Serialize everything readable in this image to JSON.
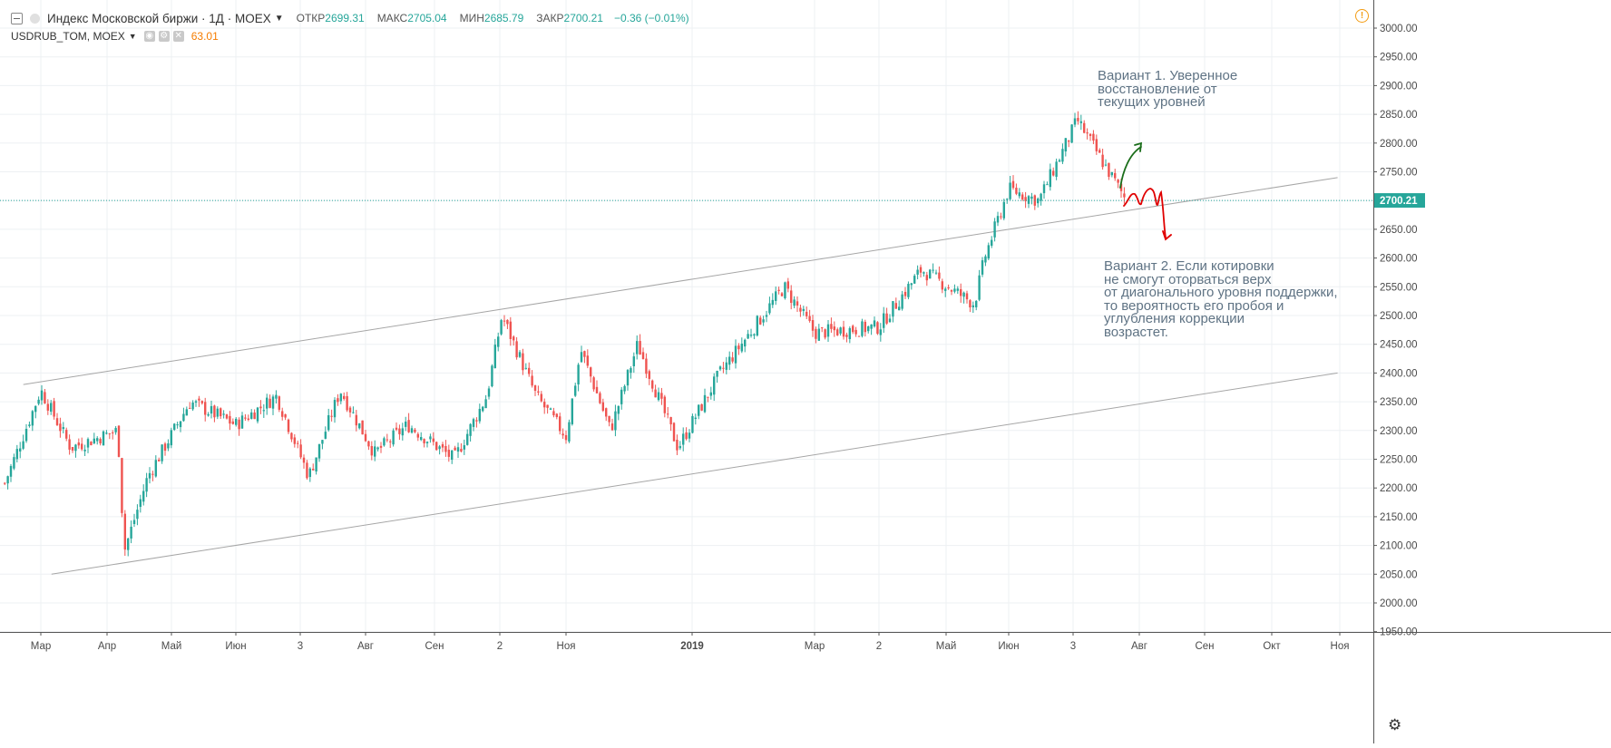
{
  "header": {
    "symbol_title": "Индекс Московской биржи · 1Д · MOEX",
    "open_label": "ОТКР",
    "open_value": "2699.31",
    "high_label": "МАКС",
    "high_value": "2705.04",
    "low_label": "МИН",
    "low_value": "2685.79",
    "close_label": "ЗАКР",
    "close_value": "2700.21",
    "change": "−0.36 (−0.01%)"
  },
  "compare": {
    "symbol": "USDRUB_TOM, MOEX",
    "value": "63.01"
  },
  "colors": {
    "up": "#26a69a",
    "down": "#ef5350",
    "price_line": "#26a69a",
    "arrow_up": "#1b6e1b",
    "arrow_down": "#e00000"
  },
  "annotations": {
    "variant1": "Вариант 1. Уверенное\nвосстановление от\nтекущих уровней",
    "variant2": "Вариант 2. Если котировки\nне смогут оторваться верх\nот диагонального уровня поддержки,\nто вероятность его пробоя и\nуглубления коррекции\nвозрастет."
  },
  "chart_data": {
    "type": "candlestick",
    "symbol": "Индекс Московской биржи",
    "timeframe": "1Д",
    "y_axis_ticks": [
      3000,
      2950,
      2900,
      2850,
      2800,
      2750,
      2700,
      2650,
      2600,
      2550,
      2500,
      2450,
      2400,
      2350,
      2300,
      2250,
      2200,
      2150,
      2100,
      2050,
      2000,
      1950
    ],
    "y_tick_labels": [
      "3000.00",
      "2950.00",
      "2900.00",
      "2850.00",
      "2800.00",
      "2750.00",
      "2700.00",
      "2650.00",
      "2600.00",
      "2550.00",
      "2500.00",
      "2450.00",
      "2400.00",
      "2350.00",
      "2300.00",
      "2250.00",
      "2200.00",
      "2150.00",
      "2100.00",
      "2050.00",
      "2000.00",
      "1950.00"
    ],
    "ylim": [
      1946,
      3030
    ],
    "x_tick_labels": [
      "Мар",
      "Апр",
      "Май",
      "Июн",
      "3",
      "Авг",
      "Сен",
      "2",
      "Ноя",
      "2019",
      "Мар",
      "2",
      "Май",
      "Июн",
      "3",
      "Авг",
      "Сен",
      "Окт",
      "Ноя"
    ],
    "last_price_label": "2700.21",
    "last_price": 2700.21,
    "approx_close_path": [
      {
        "date": "2018-02-16",
        "close": 2200
      },
      {
        "date": "2018-03-01",
        "close": 2370
      },
      {
        "date": "2018-03-15",
        "close": 2270
      },
      {
        "date": "2018-04-06",
        "close": 2300
      },
      {
        "date": "2018-04-09",
        "close": 2090
      },
      {
        "date": "2018-04-20",
        "close": 2220
      },
      {
        "date": "2018-05-10",
        "close": 2350
      },
      {
        "date": "2018-06-01",
        "close": 2310
      },
      {
        "date": "2018-06-20",
        "close": 2360
      },
      {
        "date": "2018-07-05",
        "close": 2220
      },
      {
        "date": "2018-07-20",
        "close": 2370
      },
      {
        "date": "2018-08-05",
        "close": 2260
      },
      {
        "date": "2018-08-20",
        "close": 2310
      },
      {
        "date": "2018-09-10",
        "close": 2250
      },
      {
        "date": "2018-09-25",
        "close": 2360
      },
      {
        "date": "2018-10-02",
        "close": 2500
      },
      {
        "date": "2018-10-18",
        "close": 2360
      },
      {
        "date": "2018-11-01",
        "close": 2290
      },
      {
        "date": "2018-11-08",
        "close": 2440
      },
      {
        "date": "2018-11-22",
        "close": 2300
      },
      {
        "date": "2018-12-05",
        "close": 2450
      },
      {
        "date": "2018-12-25",
        "close": 2270
      },
      {
        "date": "2019-01-15",
        "close": 2400
      },
      {
        "date": "2019-02-15",
        "close": 2550
      },
      {
        "date": "2019-03-01",
        "close": 2470
      },
      {
        "date": "2019-04-01",
        "close": 2480
      },
      {
        "date": "2019-04-20",
        "close": 2580
      },
      {
        "date": "2019-05-15",
        "close": 2520
      },
      {
        "date": "2019-05-20",
        "close": 2600
      },
      {
        "date": "2019-06-01",
        "close": 2720
      },
      {
        "date": "2019-06-15",
        "close": 2700
      },
      {
        "date": "2019-07-03",
        "close": 2840
      },
      {
        "date": "2019-07-16",
        "close": 2760
      },
      {
        "date": "2019-07-26",
        "close": 2700
      }
    ],
    "trendlines": [
      {
        "from": {
          "date": "2018-02-23",
          "price": 2380
        },
        "to": {
          "date": "2019-10-31",
          "price": 2740
        }
      },
      {
        "from": {
          "date": "2018-03-06",
          "price": 2050
        },
        "to": {
          "date": "2019-10-31",
          "price": 2400
        }
      }
    ],
    "grid": true
  }
}
